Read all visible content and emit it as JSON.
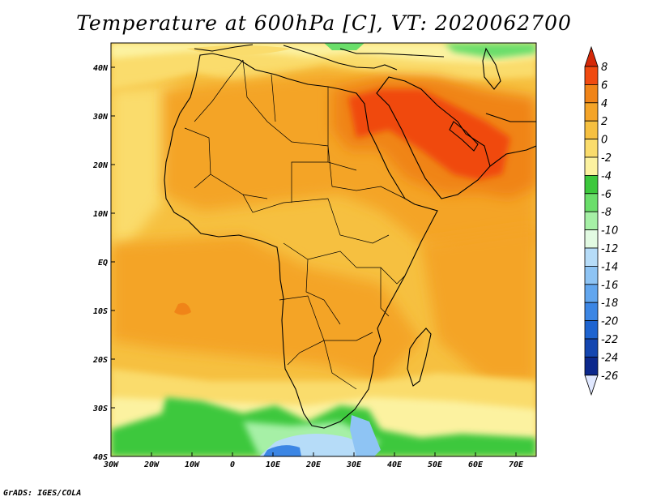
{
  "title": "Temperature at 600hPa [C], VT: 2020062700",
  "credit": "GrADS: IGES/COLA",
  "map": {
    "projection": "lat-lon",
    "lon_range": [
      -30,
      75
    ],
    "lat_range": [
      -40,
      45
    ],
    "lon_ticks": [
      {
        "lon": -30,
        "label": "30W"
      },
      {
        "lon": -20,
        "label": "20W"
      },
      {
        "lon": -10,
        "label": "10W"
      },
      {
        "lon": 0,
        "label": "0"
      },
      {
        "lon": 10,
        "label": "10E"
      },
      {
        "lon": 20,
        "label": "20E"
      },
      {
        "lon": 30,
        "label": "30E"
      },
      {
        "lon": 40,
        "label": "40E"
      },
      {
        "lon": 50,
        "label": "50E"
      },
      {
        "lon": 60,
        "label": "60E"
      },
      {
        "lon": 70,
        "label": "70E"
      }
    ],
    "lat_ticks": [
      {
        "lat": 40,
        "label": "40N"
      },
      {
        "lat": 30,
        "label": "30N"
      },
      {
        "lat": 20,
        "label": "20N"
      },
      {
        "lat": 10,
        "label": "10N"
      },
      {
        "lat": 0,
        "label": "EQ"
      },
      {
        "lat": -10,
        "label": "10S"
      },
      {
        "lat": -20,
        "label": "20S"
      },
      {
        "lat": -30,
        "label": "30S"
      },
      {
        "lat": -40,
        "label": "40S"
      }
    ]
  },
  "colorbar": {
    "levels": [
      {
        "label": "8",
        "color": "#f04a10"
      },
      {
        "label": "6",
        "color": "#f08418"
      },
      {
        "label": "4",
        "color": "#f4a428"
      },
      {
        "label": "2",
        "color": "#f6c040"
      },
      {
        "label": "0",
        "color": "#fadc6c"
      },
      {
        "label": "-2",
        "color": "#fcf2a0"
      },
      {
        "label": "-4",
        "color": "#3cc83c"
      },
      {
        "label": "-6",
        "color": "#6ade6a"
      },
      {
        "label": "-8",
        "color": "#a6f0a6"
      },
      {
        "label": "-10",
        "color": "#e2fae2"
      },
      {
        "label": "-12",
        "color": "#b6dcf8"
      },
      {
        "label": "-14",
        "color": "#8ec4f4"
      },
      {
        "label": "-16",
        "color": "#62a6ee"
      },
      {
        "label": "-18",
        "color": "#3c86e4"
      },
      {
        "label": "-20",
        "color": "#1e64d0"
      },
      {
        "label": "-22",
        "color": "#1446b0"
      },
      {
        "label": "-24",
        "color": "#0c288c"
      },
      {
        "label": "-26",
        "color": "#e0e8ff"
      }
    ],
    "top_color": "#d42808"
  }
}
